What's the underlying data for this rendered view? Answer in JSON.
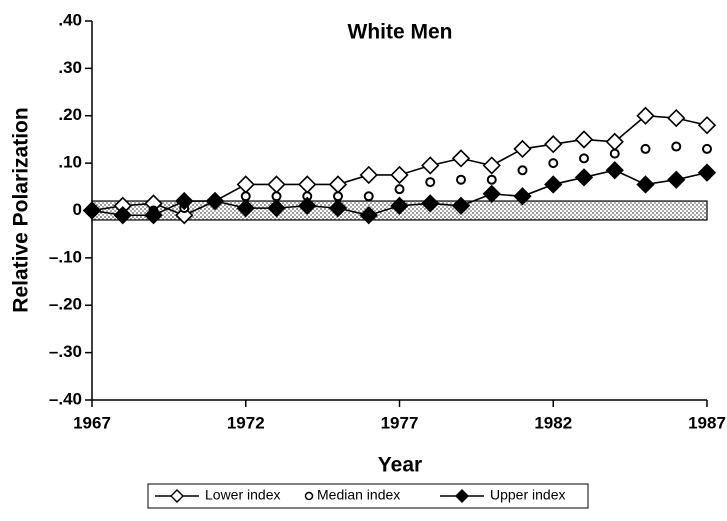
{
  "chart_data": {
    "type": "line",
    "title": "White Men",
    "x_label": "Year",
    "y_label": "Relative Polarization",
    "x": [
      1967,
      1968,
      1969,
      1970,
      1971,
      1972,
      1973,
      1974,
      1975,
      1976,
      1977,
      1978,
      1979,
      1980,
      1981,
      1982,
      1983,
      1984,
      1985,
      1986,
      1987
    ],
    "series": [
      {
        "name": "Lower index",
        "color": "#000000",
        "marker": "open-diamond",
        "line": true,
        "values": [
          0,
          0.01,
          0.015,
          -0.01,
          0.02,
          0.055,
          0.055,
          0.055,
          0.055,
          0.075,
          0.075,
          0.095,
          0.11,
          0.095,
          0.13,
          0.14,
          0.15,
          0.145,
          0.2,
          0.195,
          0.18
        ]
      },
      {
        "name": "Median index",
        "color": "#000000",
        "marker": "circle",
        "line": false,
        "values": [
          0,
          -0.005,
          0,
          0.005,
          0.02,
          0.03,
          0.03,
          0.03,
          0.03,
          0.03,
          0.045,
          0.06,
          0.065,
          0.065,
          0.085,
          0.1,
          0.11,
          0.12,
          0.13,
          0.135,
          0.13
        ]
      },
      {
        "name": "Upper index",
        "color": "#000000",
        "marker": "filled-diamond",
        "line": true,
        "values": [
          0,
          -0.01,
          -0.01,
          0.02,
          0.02,
          0.005,
          0.005,
          0.01,
          0.005,
          -0.01,
          0.01,
          0.015,
          0.01,
          0.035,
          0.03,
          0.055,
          0.07,
          0.085,
          0.055,
          0.065,
          0.08
        ]
      }
    ],
    "reference_band": [
      -0.02,
      0.02
    ],
    "xlim": [
      1967,
      1987
    ],
    "xticks": [
      1967,
      1972,
      1977,
      1982,
      1987
    ],
    "ylim": [
      -0.4,
      0.4
    ],
    "yticks": [
      {
        "value": 0.4,
        "label": ".40"
      },
      {
        "value": 0.3,
        "label": ".30"
      },
      {
        "value": 0.2,
        "label": ".20"
      },
      {
        "value": 0.1,
        "label": ".10"
      },
      0,
      {
        "value": -0.1,
        "label": "–.10"
      },
      {
        "value": -0.2,
        "label": "–.20"
      },
      {
        "value": -0.3,
        "label": "–.30"
      },
      {
        "value": -0.4,
        "label": "–.40"
      }
    ],
    "legend": "bottom"
  }
}
